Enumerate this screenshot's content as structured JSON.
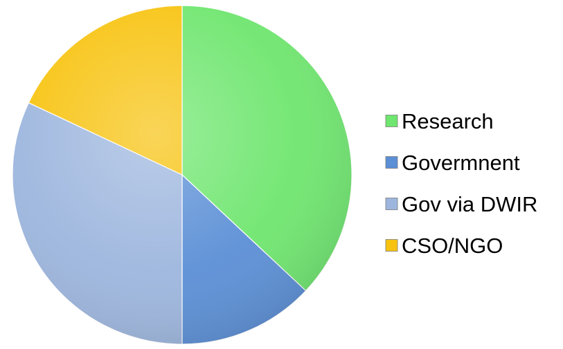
{
  "chart_data": {
    "type": "pie",
    "title": "",
    "categories": [
      "Research",
      "Govermnent",
      "Gov via DWIR",
      "CSO/NGO"
    ],
    "values": [
      37,
      13,
      32,
      18
    ],
    "colors": [
      "#6fe66f",
      "#5b8fd6",
      "#9db6de",
      "#f7c310"
    ],
    "start_angle_deg": 0,
    "direction": "clockwise",
    "legend": {
      "position": "right",
      "entries": [
        "Research",
        "Govermnent",
        "Gov via DWIR",
        "CSO/NGO"
      ]
    },
    "data_labels": false
  }
}
